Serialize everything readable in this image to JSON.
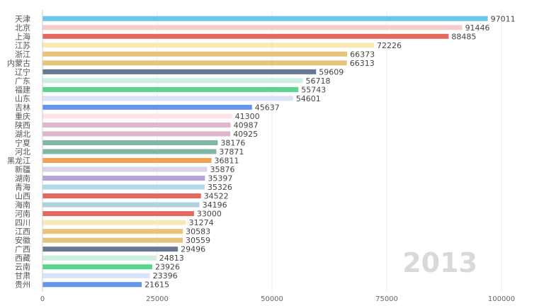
{
  "chart_data": {
    "type": "bar",
    "orientation": "horizontal",
    "year": "2013",
    "xlim": [
      0,
      100000
    ],
    "xticks": [
      0,
      25000,
      50000,
      75000,
      100000
    ],
    "grid": true,
    "bars": [
      {
        "name": "天津",
        "value": 97011,
        "color": "#6bc6ec"
      },
      {
        "name": "北京",
        "value": 91446,
        "color": "#f7cccc"
      },
      {
        "name": "上海",
        "value": 88485,
        "color": "#e4685d"
      },
      {
        "name": "江苏",
        "value": 72226,
        "color": "#fbe9b5"
      },
      {
        "name": "浙江",
        "value": 66373,
        "color": "#e6c57a"
      },
      {
        "name": "内蒙古",
        "value": 66313,
        "color": "#e6c57a"
      },
      {
        "name": "辽宁",
        "value": 59609,
        "color": "#687791"
      },
      {
        "name": "广东",
        "value": 56718,
        "color": "#cdeee0"
      },
      {
        "name": "福建",
        "value": 55743,
        "color": "#5ad58e"
      },
      {
        "name": "山东",
        "value": 54601,
        "color": "#dbe2f8"
      },
      {
        "name": "吉林",
        "value": 45637,
        "color": "#6495ed"
      },
      {
        "name": "重庆",
        "value": 41300,
        "color": "#fde3ea"
      },
      {
        "name": "陕西",
        "value": 40987,
        "color": "#deb7cf"
      },
      {
        "name": "湖北",
        "value": 40925,
        "color": "#deb7cf"
      },
      {
        "name": "宁夏",
        "value": 38176,
        "color": "#7fb6a5"
      },
      {
        "name": "河北",
        "value": 37871,
        "color": "#7fb6a5"
      },
      {
        "name": "黑龙江",
        "value": 36811,
        "color": "#f4a052"
      },
      {
        "name": "新疆",
        "value": 35876,
        "color": "#dcd2ec"
      },
      {
        "name": "湖南",
        "value": 35397,
        "color": "#b7a2d9"
      },
      {
        "name": "青海",
        "value": 35326,
        "color": "#b0dbe6"
      },
      {
        "name": "山西",
        "value": 34522,
        "color": "#e4685d"
      },
      {
        "name": "海南",
        "value": 34196,
        "color": "#b0d2e0"
      },
      {
        "name": "河南",
        "value": 33000,
        "color": "#e4685d"
      },
      {
        "name": "四川",
        "value": 31274,
        "color": "#fbe9b5"
      },
      {
        "name": "江西",
        "value": 30583,
        "color": "#e6c57a"
      },
      {
        "name": "安徽",
        "value": 30559,
        "color": "#e6c57a"
      },
      {
        "name": "广西",
        "value": 29496,
        "color": "#687791"
      },
      {
        "name": "西藏",
        "value": 24813,
        "color": "#cdeee0"
      },
      {
        "name": "云南",
        "value": 23926,
        "color": "#5ad58e"
      },
      {
        "name": "甘肃",
        "value": 23396,
        "color": "#dbe2f8"
      },
      {
        "name": "贵州",
        "value": 21615,
        "color": "#6495ed"
      }
    ]
  }
}
